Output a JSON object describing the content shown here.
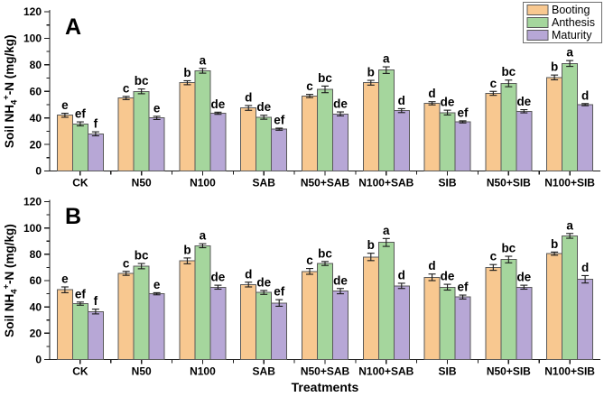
{
  "figure": {
    "xlabel": "Treatments",
    "ylabel": {
      "prefix": "Soil NH",
      "sub": "4",
      "sup": "+",
      "suffix": "-N (mg/kg)"
    },
    "legend": [
      "Booting",
      "Anthesis",
      "Maturity"
    ],
    "colors": {
      "Booting": "#F8C890",
      "Anthesis": "#A5D69D",
      "Maturity": "#B7A7D6",
      "bar_border": "#595959",
      "axis": "#1a1a1a",
      "text": "#000000",
      "legend_border": "#6e6e6e",
      "background": "#ffffff"
    }
  },
  "chart_data": [
    {
      "type": "bar",
      "panel_label": "A",
      "ylabel": "Soil NH4+-N (mg/kg)",
      "ylim": [
        0,
        120
      ],
      "ytick_step": 20,
      "ytick_labels": [
        "0",
        "20",
        "40",
        "60",
        "80",
        "100",
        "120"
      ],
      "categories": [
        "CK",
        "N50",
        "N100",
        "SAB",
        "N50+SAB",
        "N100+SAB",
        "SIB",
        "N50+SIB",
        "N100+SIB"
      ],
      "series": [
        {
          "name": "Booting",
          "values": [
            42,
            55,
            66.5,
            47.5,
            56.5,
            66.5,
            51,
            58.5,
            70.5
          ],
          "errors": [
            1.5,
            1.2,
            1.5,
            1.8,
            1.2,
            1.8,
            1.2,
            1.5,
            1.8
          ],
          "letters": [
            "e",
            "c",
            "b",
            "d",
            "c",
            "b",
            "d",
            "c",
            "b"
          ]
        },
        {
          "name": "Anthesis",
          "values": [
            35.5,
            60,
            75.5,
            40.5,
            61.5,
            76,
            44,
            66,
            81
          ],
          "errors": [
            1.5,
            1.8,
            1.8,
            1.5,
            2.5,
            2.5,
            1.8,
            2.5,
            2.2
          ],
          "letters": [
            "ef",
            "bc",
            "a",
            "de",
            "bc",
            "a",
            "de",
            "bc",
            "a"
          ]
        },
        {
          "name": "Maturity",
          "values": [
            28,
            40,
            43.5,
            31.5,
            43,
            45.5,
            37,
            45,
            50
          ],
          "errors": [
            1.5,
            1.2,
            0.8,
            0.8,
            1.5,
            1.5,
            0.8,
            1.2,
            0.8
          ],
          "letters": [
            "f",
            "e",
            "de",
            "ef",
            "de",
            "d",
            "ef",
            "de",
            "d"
          ]
        }
      ]
    },
    {
      "type": "bar",
      "panel_label": "B",
      "ylabel": "Soil NH4+-N (mg/kg)",
      "ylim": [
        0,
        120
      ],
      "ytick_step": 20,
      "ytick_labels": [
        "0",
        "20",
        "40",
        "60",
        "80",
        "100",
        "120"
      ],
      "categories": [
        "CK",
        "N50",
        "N100",
        "SAB",
        "N50+SAB",
        "N100+SAB",
        "SIB",
        "N50+SIB",
        "N100+SIB"
      ],
      "series": [
        {
          "name": "Booting",
          "values": [
            53,
            65.5,
            75,
            57,
            67,
            78,
            62.5,
            70,
            80.5
          ],
          "errors": [
            2.2,
            1.5,
            2.2,
            1.8,
            2.2,
            2.8,
            2.5,
            2.2,
            1.2
          ],
          "letters": [
            "e",
            "c",
            "b",
            "d",
            "c",
            "b",
            "d",
            "c",
            "b"
          ]
        },
        {
          "name": "Anthesis",
          "values": [
            42.5,
            71,
            86.5,
            51,
            73,
            89,
            55,
            76,
            94
          ],
          "errors": [
            1.2,
            2.0,
            1.5,
            1.5,
            1.5,
            3.0,
            2.2,
            2.5,
            1.8
          ],
          "letters": [
            "ef",
            "bc",
            "a",
            "de",
            "bc",
            "a",
            "de",
            "bc",
            "a"
          ]
        },
        {
          "name": "Maturity",
          "values": [
            36.5,
            50,
            55,
            43,
            52,
            56,
            47.5,
            55,
            61
          ],
          "errors": [
            1.8,
            0.8,
            1.5,
            2.5,
            2.0,
            2.0,
            1.5,
            1.5,
            2.8
          ],
          "letters": [
            "f",
            "e",
            "de",
            "ef",
            "de",
            "d",
            "ef",
            "de",
            "d"
          ]
        }
      ]
    }
  ]
}
